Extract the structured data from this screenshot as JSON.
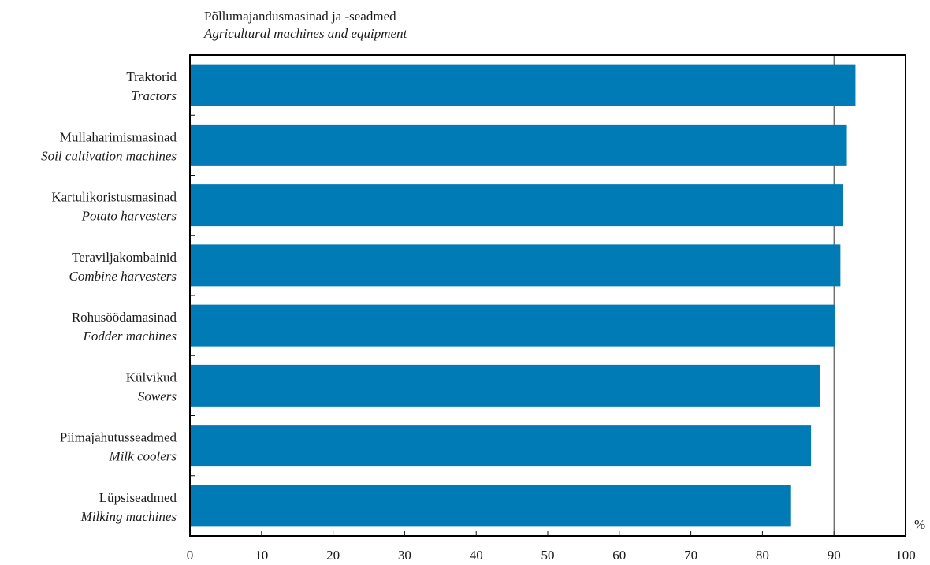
{
  "chart_data": {
    "type": "bar",
    "orientation": "horizontal",
    "title": "Põllumajandusmasinad ja -seadmed",
    "subtitle": "Agricultural machines and equipment",
    "unit_label": "%",
    "xlim": [
      0,
      100
    ],
    "x_ticks": [
      "0",
      "10",
      "20",
      "30",
      "40",
      "50",
      "60",
      "70",
      "80",
      "90",
      "100"
    ],
    "grid": "vertical line at 90",
    "bar_color": "#007BB6",
    "categories": [
      {
        "label": "Traktorid",
        "label_en": "Tractors",
        "value": 93.0
      },
      {
        "label": "Mullaharimismasinad",
        "label_en": "Soil cultivation machines",
        "value": 91.8
      },
      {
        "label": "Kartulikoristusmasinad",
        "label_en": "Potato harvesters",
        "value": 91.3
      },
      {
        "label": "Teraviljakombainid",
        "label_en": "Combine harvesters",
        "value": 90.9
      },
      {
        "label": "Rohusöödamasinad",
        "label_en": "Fodder machines",
        "value": 90.2
      },
      {
        "label": "Külvikud",
        "label_en": "Sowers",
        "value": 88.1
      },
      {
        "label": "Piimajahutusseadmed",
        "label_en": "Milk coolers",
        "value": 86.8
      },
      {
        "label": "Lüpsiseadmed",
        "label_en": "Milking machines",
        "value": 84.0
      }
    ]
  }
}
